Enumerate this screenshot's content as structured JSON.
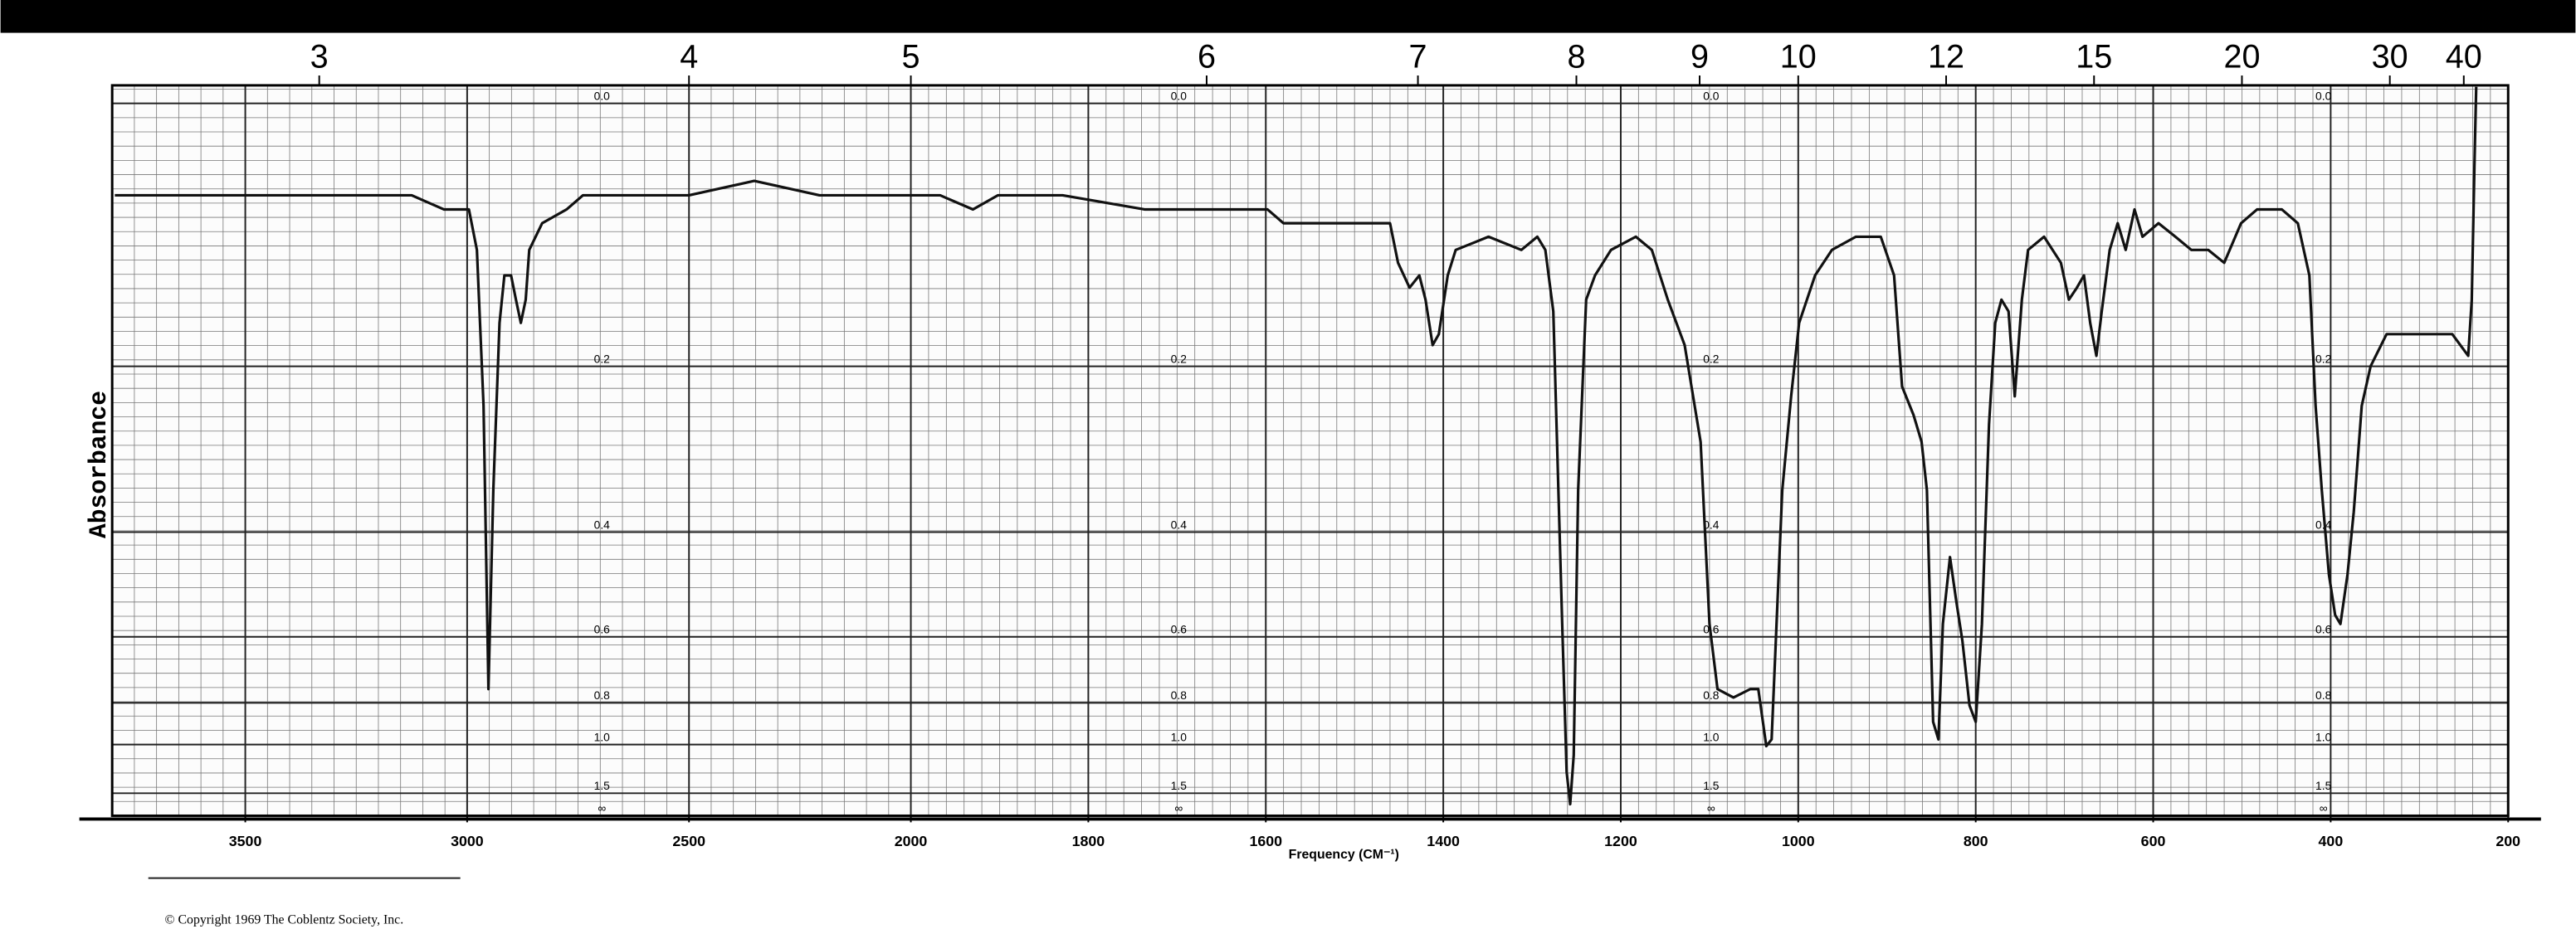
{
  "chart_data": {
    "type": "line",
    "x_label": "Frequency (CM⁻¹)",
    "y_label": "Absorbance",
    "note": "© Copyright 1969  The Coblentz Society, Inc.",
    "xlim": [
      3800,
      200
    ],
    "xticks": [
      3500,
      3000,
      2500,
      2000,
      1800,
      1600,
      1400,
      1200,
      1000,
      800,
      600,
      400,
      200
    ],
    "x2ticks": [
      3,
      4,
      5,
      6,
      7,
      8,
      9,
      10,
      12,
      15,
      20,
      30,
      40
    ],
    "ylim": [
      0,
      null
    ],
    "y_scale": "transmittance",
    "yticks": [
      {
        "value": 0,
        "label": "0.0"
      },
      0.2,
      0.4,
      0.6,
      0.8,
      {
        "value": 1,
        "label": "1.0"
      },
      1.5,
      {
        "value": null,
        "label": "∞"
      }
    ],
    "grid": true,
    "color": "#111111",
    "x": [
      3794,
      3676,
      3493,
      3309,
      3125,
      3052,
      2996,
      2978,
      2963,
      2952,
      2941,
      2927,
      2916,
      2901,
      2890,
      2879,
      2868,
      2860,
      2831,
      2776,
      2739,
      2647,
      2500,
      2353,
      2206,
      2022,
      1967,
      1930,
      1902,
      1829,
      1736,
      1626,
      1598,
      1580,
      1552,
      1497,
      1460,
      1451,
      1438,
      1427,
      1420,
      1412,
      1405,
      1395,
      1386,
      1349,
      1312,
      1294,
      1285,
      1276,
      1266,
      1261,
      1257,
      1253,
      1248,
      1239,
      1229,
      1211,
      1183,
      1165,
      1147,
      1128,
      1110,
      1100,
      1091,
      1073,
      1054,
      1045,
      1036,
      1030,
      1018,
      1008,
      999,
      981,
      962,
      935,
      907,
      892,
      883,
      870,
      861,
      855,
      848,
      842,
      837,
      829,
      822,
      815,
      807,
      800,
      793,
      785,
      778,
      771,
      763,
      756,
      748,
      741,
      723,
      704,
      695,
      686,
      678,
      671,
      664,
      658,
      649,
      640,
      631,
      621,
      612,
      594,
      575,
      557,
      538,
      520,
      501,
      483,
      455,
      437,
      424,
      417,
      410,
      402,
      395,
      389,
      381,
      374,
      365,
      355,
      337,
      300,
      263,
      245,
      241,
      238,
      236
    ],
    "values": [
      0.06,
      0.06,
      0.06,
      0.06,
      0.06,
      0.07,
      0.07,
      0.1,
      0.24,
      0.75,
      0.34,
      0.16,
      0.12,
      0.12,
      0.14,
      0.16,
      0.14,
      0.1,
      0.08,
      0.07,
      0.06,
      0.06,
      0.06,
      0.05,
      0.06,
      0.06,
      0.06,
      0.07,
      0.06,
      0.06,
      0.07,
      0.07,
      0.07,
      0.08,
      0.08,
      0.08,
      0.08,
      0.11,
      0.13,
      0.12,
      0.14,
      0.18,
      0.17,
      0.12,
      0.1,
      0.09,
      0.1,
      0.09,
      0.1,
      0.15,
      0.57,
      1.21,
      1.79,
      1.07,
      0.34,
      0.14,
      0.12,
      0.1,
      0.09,
      0.1,
      0.14,
      0.18,
      0.28,
      0.57,
      0.75,
      0.78,
      0.75,
      0.75,
      1.01,
      0.97,
      0.34,
      0.23,
      0.16,
      0.12,
      0.1,
      0.09,
      0.09,
      0.12,
      0.22,
      0.25,
      0.28,
      0.34,
      0.88,
      0.97,
      0.57,
      0.44,
      0.52,
      0.61,
      0.81,
      0.88,
      0.57,
      0.26,
      0.16,
      0.14,
      0.15,
      0.23,
      0.14,
      0.1,
      0.09,
      0.11,
      0.14,
      0.13,
      0.12,
      0.16,
      0.19,
      0.15,
      0.1,
      0.08,
      0.1,
      0.07,
      0.09,
      0.08,
      0.09,
      0.1,
      0.1,
      0.11,
      0.08,
      0.07,
      0.07,
      0.08,
      0.12,
      0.24,
      0.34,
      0.47,
      0.55,
      0.57,
      0.47,
      0.37,
      0.24,
      0.2,
      0.17,
      0.17,
      0.17,
      0.19,
      0.14,
      0.04,
      -0.01
    ]
  }
}
